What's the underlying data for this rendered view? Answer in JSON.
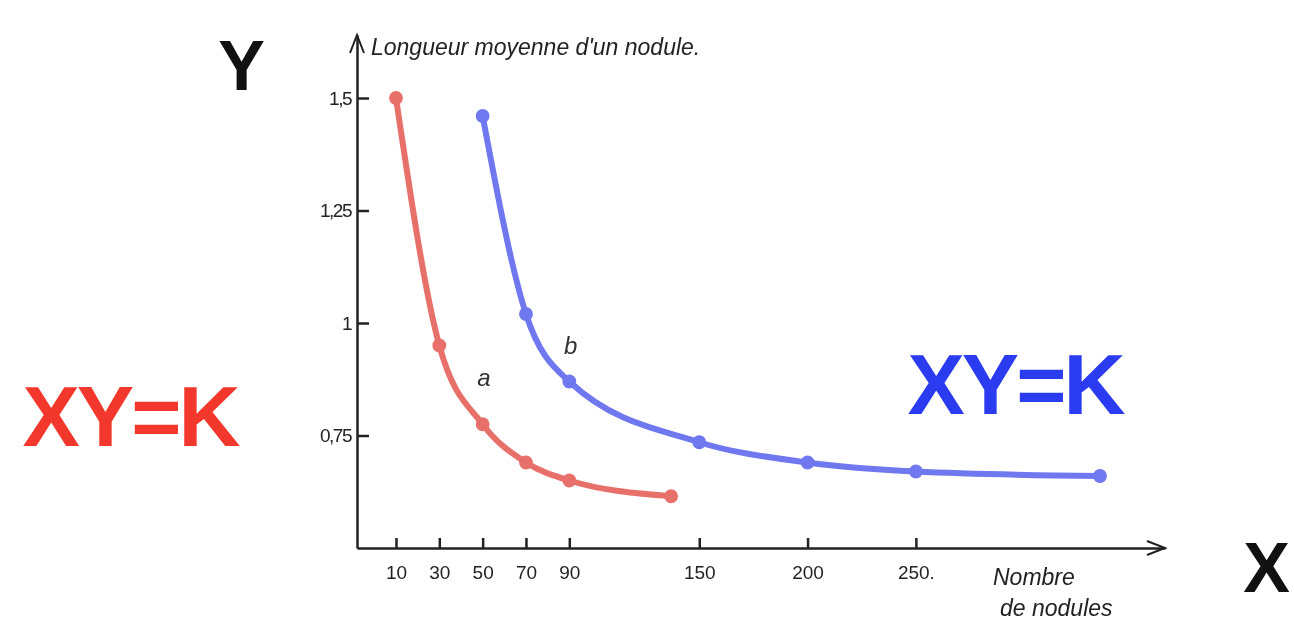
{
  "chart_data": {
    "type": "line",
    "xlabel": "Nombre de nodules",
    "ylabel": "Longueur moyenne d'un nodule.",
    "xlim": [
      -8,
      365
    ],
    "ylim": [
      0.5,
      1.64
    ],
    "xticks": [
      10,
      30,
      50,
      70,
      90,
      150,
      200,
      {
        "value": 250,
        "label": "250."
      }
    ],
    "yticks": [
      {
        "value": 0.75,
        "label": "0,75"
      },
      1,
      {
        "value": 1.25,
        "label": "1,25"
      },
      {
        "value": 1.5,
        "label": "1,5"
      }
    ],
    "grid": false,
    "marker": "circle",
    "line_style": "solid",
    "series": [
      {
        "name": "a",
        "color": "#e8706a",
        "x": [
          10,
          30,
          50,
          70,
          90,
          137
        ],
        "values": [
          1.5,
          0.95,
          0.775,
          0.69,
          0.65,
          0.615
        ]
      },
      {
        "name": "b",
        "color": "#6f78ee",
        "x": [
          50,
          70,
          90,
          150,
          200,
          250,
          335
        ],
        "values": [
          1.46,
          1.02,
          0.87,
          0.735,
          0.69,
          0.67,
          0.66
        ]
      }
    ],
    "annotations": [
      "Y",
      "X",
      "XY=K",
      "XY=K"
    ]
  }
}
